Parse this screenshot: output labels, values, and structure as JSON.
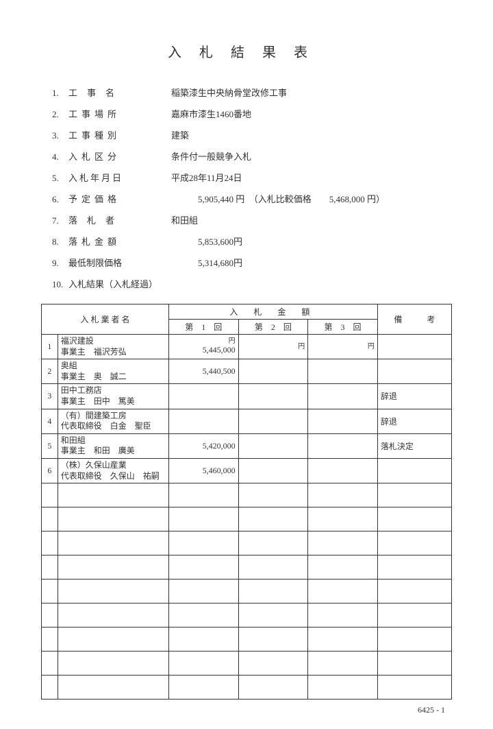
{
  "title": "入札結果表",
  "info": [
    {
      "num": "1.",
      "label": "工事名",
      "labelClass": "spaced2",
      "value": "稲築漆生中央納骨堂改修工事"
    },
    {
      "num": "2.",
      "label": "工事場所",
      "labelClass": "spaced3",
      "value": "嘉麻市漆生1460番地"
    },
    {
      "num": "3.",
      "label": "工事種別",
      "labelClass": "spaced3",
      "value": "建築"
    },
    {
      "num": "4.",
      "label": "入札区分",
      "labelClass": "spaced3",
      "value": "条件付一般競争入札"
    },
    {
      "num": "5.",
      "label": "入札年月日",
      "labelClass": "spaced4",
      "value": "平成28年11月24日"
    },
    {
      "num": "6.",
      "label": "予定価格",
      "labelClass": "spaced3",
      "value": "　　　5,905,440 円　（入札比較価格　　5,468,000 円）"
    },
    {
      "num": "7.",
      "label": "落札者",
      "labelClass": "spaced2",
      "value": "和田組"
    },
    {
      "num": "8.",
      "label": "落札金額",
      "labelClass": "spaced3",
      "value": "　　　5,853,600円"
    },
    {
      "num": "9.",
      "label": "最低制限価格",
      "labelClass": "",
      "value": "　　　5,314,680円"
    },
    {
      "num": "10.",
      "label": "入札結果（入札経過）",
      "labelClass": "",
      "value": ""
    }
  ],
  "table": {
    "headers": {
      "bidder": "入 札 業 者 名",
      "amount": "入 札 金 額",
      "round1": "第　1　回",
      "round2": "第　2　回",
      "round3": "第　3　回",
      "remark": "備　　　考",
      "unit": "円"
    },
    "rows": [
      {
        "n": "1",
        "name1": "福沢建設",
        "name2": "事業主　福沢芳弘",
        "a1": "5,445,000",
        "a2": "",
        "a3": "",
        "remark": ""
      },
      {
        "n": "2",
        "name1": "奥組",
        "name2": "事業主　奥　誠二",
        "a1": "5,440,500",
        "a2": "",
        "a3": "",
        "remark": ""
      },
      {
        "n": "3",
        "name1": "田中工務店",
        "name2": "事業主　田中　篤美",
        "a1": "",
        "a2": "",
        "a3": "",
        "remark": "辞退"
      },
      {
        "n": "4",
        "name1": "（有）間建築工房",
        "name2": "代表取締役　白金　聖臣",
        "a1": "",
        "a2": "",
        "a3": "",
        "remark": "辞退"
      },
      {
        "n": "5",
        "name1": "和田組",
        "name2": "事業主　和田　廣美",
        "a1": "5,420,000",
        "a2": "",
        "a3": "",
        "remark": "落札決定"
      },
      {
        "n": "6",
        "name1": "（株）久保山産業",
        "name2": "代表取締役　久保山　祐嗣",
        "a1": "5,460,000",
        "a2": "",
        "a3": "",
        "remark": ""
      }
    ],
    "emptyRows": 9
  },
  "footer": "6425 - 1"
}
